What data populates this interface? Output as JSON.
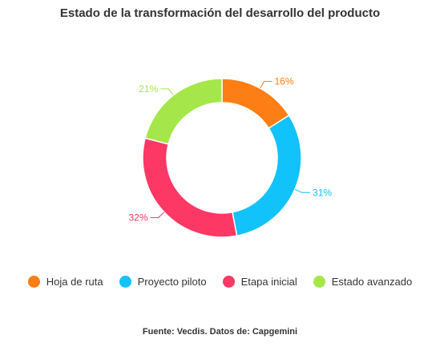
{
  "chart_data": {
    "type": "pie",
    "title": "Estado de la transformación del desarrollo del producto",
    "source": "Fuente: Vecdis. Datos de: Capgemini",
    "slices": [
      {
        "label": "Hoja de ruta",
        "value": 16,
        "display": "16%",
        "color": "#fd7e14"
      },
      {
        "label": "Proyecto piloto",
        "value": 31,
        "display": "31%",
        "color": "#12c2fb"
      },
      {
        "label": "Etapa inicial",
        "value": 32,
        "display": "32%",
        "color": "#fd3865"
      },
      {
        "label": "Estado avanzado",
        "value": 21,
        "display": "21%",
        "color": "#a5e74b"
      }
    ],
    "donut": true,
    "legend_position": "bottom"
  }
}
